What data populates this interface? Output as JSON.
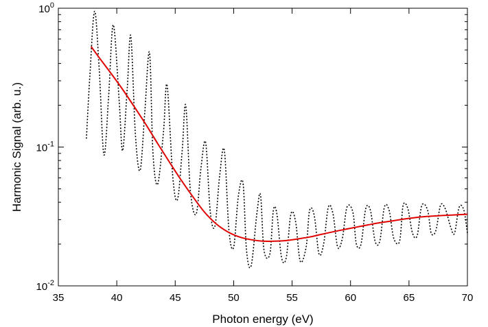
{
  "chart_data": {
    "type": "line",
    "xlabel": "Photon energy (eV)",
    "ylabel": "Harmonic Signal (arb. u.)",
    "xlim": [
      35,
      70
    ],
    "ylim": [
      0.01,
      1
    ],
    "yscale": "log",
    "grid": false,
    "legend": "none",
    "x_ticks": [
      {
        "value": 35,
        "label": "35"
      },
      {
        "value": 40,
        "label": "40"
      },
      {
        "value": 45,
        "label": "45"
      },
      {
        "value": 50,
        "label": "50"
      },
      {
        "value": 55,
        "label": "55"
      },
      {
        "value": 60,
        "label": "60"
      },
      {
        "value": 65,
        "label": "65"
      },
      {
        "value": 70,
        "label": "70"
      }
    ],
    "y_ticks": [
      {
        "value": 0.01,
        "base": "10",
        "exp": "-2"
      },
      {
        "value": 0.1,
        "base": "10",
        "exp": "-1"
      },
      {
        "value": 1,
        "base": "10",
        "exp": "0"
      }
    ],
    "series": [
      {
        "style": "dotted",
        "color": "#000000",
        "x": [
          37.4,
          37.7,
          38.1,
          38.5,
          38.9,
          39.3,
          39.7,
          40.2,
          40.5,
          40.9,
          41.2,
          41.6,
          42.0,
          42.4,
          42.8,
          43.1,
          43.5,
          44.0,
          44.3,
          44.8,
          45.2,
          45.6,
          45.9,
          46.3,
          46.8,
          47.2,
          47.6,
          48.0,
          48.4,
          48.8,
          49.2,
          49.6,
          50.0,
          50.4,
          50.8,
          51.1,
          51.5,
          52.0,
          52.3,
          52.6,
          53.1,
          53.4,
          53.7,
          54.1,
          54.5,
          54.9,
          55.3,
          55.7,
          56.2,
          56.5,
          56.9,
          57.3,
          57.7,
          58.1,
          58.5,
          58.9,
          59.3,
          59.7,
          60.2,
          60.5,
          60.9,
          61.3,
          61.7,
          62.1,
          62.5,
          62.9,
          63.3,
          63.7,
          64.2,
          64.5,
          64.9,
          65.3,
          65.7,
          66.1,
          66.6,
          66.9,
          67.3,
          67.7,
          68.1,
          68.6,
          68.9,
          69.3,
          69.7,
          70.0
        ],
        "y": [
          0.115,
          0.33,
          0.95,
          0.36,
          0.088,
          0.23,
          0.76,
          0.22,
          0.094,
          0.27,
          0.63,
          0.12,
          0.068,
          0.18,
          0.48,
          0.09,
          0.054,
          0.13,
          0.28,
          0.06,
          0.042,
          0.095,
          0.2,
          0.048,
          0.033,
          0.07,
          0.108,
          0.034,
          0.027,
          0.062,
          0.095,
          0.025,
          0.019,
          0.044,
          0.055,
          0.018,
          0.014,
          0.034,
          0.045,
          0.018,
          0.017,
          0.035,
          0.033,
          0.016,
          0.016,
          0.033,
          0.029,
          0.015,
          0.019,
          0.035,
          0.032,
          0.017,
          0.02,
          0.037,
          0.033,
          0.019,
          0.022,
          0.037,
          0.034,
          0.02,
          0.02,
          0.036,
          0.035,
          0.021,
          0.021,
          0.037,
          0.035,
          0.022,
          0.021,
          0.038,
          0.036,
          0.024,
          0.023,
          0.038,
          0.035,
          0.024,
          0.025,
          0.038,
          0.036,
          0.026,
          0.024,
          0.037,
          0.035,
          0.024
        ]
      },
      {
        "style": "solid",
        "color": "#e00000",
        "x": [
          37.8,
          38.5,
          39.5,
          40.5,
          41.5,
          42.5,
          43.5,
          44.5,
          45.5,
          46.5,
          47.5,
          48.5,
          49.5,
          50.5,
          51.5,
          52.5,
          53.5,
          54.5,
          55.5,
          56.5,
          57.5,
          58.5,
          59.5,
          60.5,
          61.5,
          62.5,
          63.5,
          64.5,
          65.5,
          66.5,
          67.5,
          68.5,
          70.0
        ],
        "y": [
          0.53,
          0.44,
          0.34,
          0.26,
          0.195,
          0.145,
          0.106,
          0.078,
          0.058,
          0.044,
          0.034,
          0.028,
          0.0245,
          0.0225,
          0.0215,
          0.021,
          0.021,
          0.0212,
          0.0218,
          0.0225,
          0.0235,
          0.0245,
          0.0255,
          0.0265,
          0.0275,
          0.0285,
          0.0293,
          0.0302,
          0.031,
          0.0316,
          0.032,
          0.0323,
          0.0328
        ]
      }
    ]
  }
}
